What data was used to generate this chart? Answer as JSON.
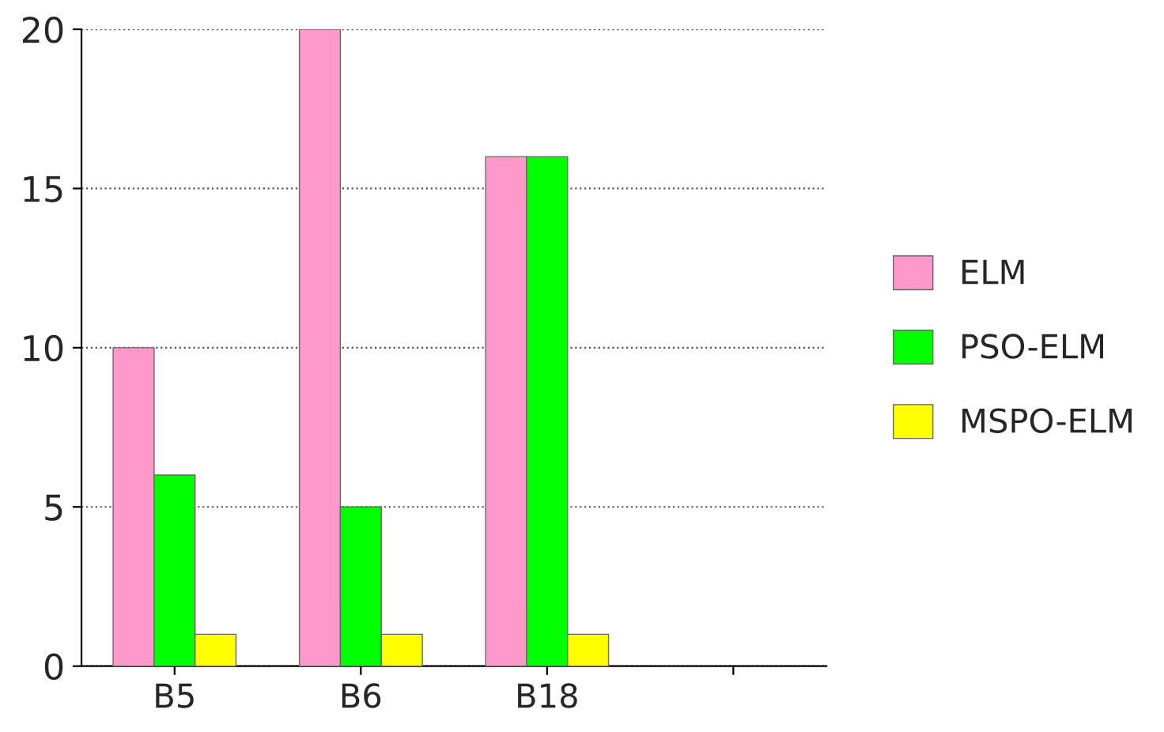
{
  "chart_data": {
    "type": "bar",
    "categories": [
      "B5",
      "B6",
      "B18",
      null
    ],
    "series": [
      {
        "name": "ELM",
        "color": "#ff99cc",
        "values": [
          10,
          20,
          16,
          null
        ]
      },
      {
        "name": "PSO-ELM",
        "color": "#00ff00",
        "values": [
          6,
          5,
          16,
          null
        ]
      },
      {
        "name": "MSPO-ELM",
        "color": "#ffff00",
        "values": [
          1,
          1,
          1,
          null
        ]
      }
    ],
    "ylim": [
      0,
      20
    ],
    "yticks": [
      0,
      5,
      10,
      15,
      20
    ],
    "grid": "y",
    "legend": "right"
  }
}
